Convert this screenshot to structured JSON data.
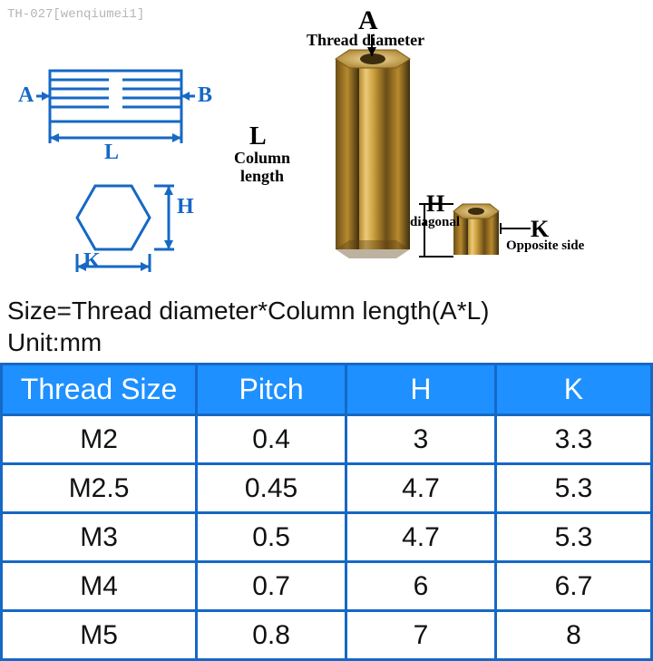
{
  "watermark": "TH-027[wenqiumei1]",
  "diagram": {
    "A_top": "A",
    "thread_diameter_label": "Thread diameter",
    "L_label": "L",
    "column_length_label": "Column\nlength",
    "H_label": "H",
    "diagonal_label": "diagonal",
    "K_label": "K",
    "opposite_side_label": "Opposite side",
    "schematic": {
      "A": "A",
      "B": "B",
      "L": "L",
      "H": "H",
      "K": "K"
    }
  },
  "size_note": "Size=Thread diameter*Column length(A*L)\nUnit:mm",
  "table": {
    "type": "table",
    "header_bg": "#1e90ff",
    "header_fg": "#ffffff",
    "border_color": "#1668c5",
    "cell_fontsize": 30,
    "header_fontsize": 32,
    "columns": [
      "Thread Size",
      "Pitch",
      "H",
      "K"
    ],
    "rows": [
      [
        "M2",
        "0.4",
        "3",
        "3.3"
      ],
      [
        "M2.5",
        "0.45",
        "4.7",
        "5.3"
      ],
      [
        "M3",
        "0.5",
        "4.7",
        "5.3"
      ],
      [
        "M4",
        "0.7",
        "6",
        "6.7"
      ],
      [
        "M5",
        "0.8",
        "7",
        "8"
      ]
    ]
  },
  "standoff_render": {
    "brass_light": "#e8c46f",
    "brass_mid": "#c99c3a",
    "brass_dark": "#7a5a1a",
    "brass_shadow": "#3d2d0e"
  },
  "schematic_render": {
    "line_color": "#1668c5",
    "line_width": 2
  }
}
